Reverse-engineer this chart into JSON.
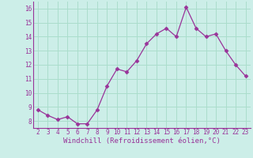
{
  "x": [
    2,
    3,
    4,
    5,
    6,
    7,
    8,
    9,
    10,
    11,
    12,
    13,
    14,
    15,
    16,
    17,
    18,
    19,
    20,
    21,
    22,
    23
  ],
  "y": [
    8.8,
    8.4,
    8.1,
    8.3,
    7.8,
    7.8,
    8.8,
    10.5,
    11.7,
    11.5,
    12.3,
    13.5,
    14.2,
    14.6,
    14.0,
    16.1,
    14.6,
    14.0,
    14.2,
    13.0,
    12.0,
    11.2
  ],
  "line_color": "#993399",
  "marker": "D",
  "marker_size": 2.5,
  "bg_color": "#cceee8",
  "grid_color": "#aaddcc",
  "xlabel": "Windchill (Refroidissement éolien,°C)",
  "xlabel_color": "#993399",
  "tick_color": "#993399",
  "ylim": [
    7.5,
    16.5
  ],
  "yticks": [
    8,
    9,
    10,
    11,
    12,
    13,
    14,
    15,
    16
  ],
  "xticks": [
    2,
    3,
    4,
    5,
    6,
    7,
    8,
    9,
    10,
    11,
    12,
    13,
    14,
    15,
    16,
    17,
    18,
    19,
    20,
    21,
    22,
    23
  ],
  "line_width": 0.9,
  "tick_fontsize": 5.5,
  "xlabel_fontsize": 6.5
}
